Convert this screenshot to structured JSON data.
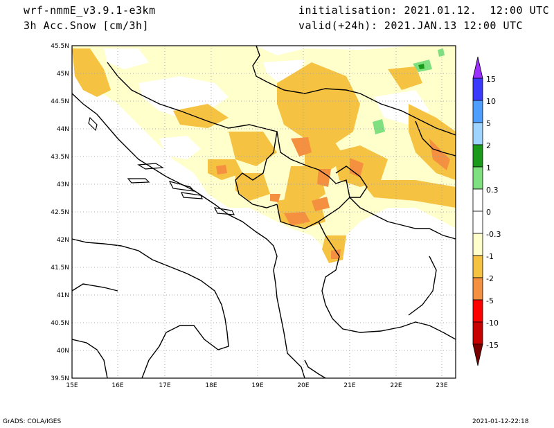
{
  "header": {
    "model": "wrf-nmmE_v3.9.1-e3km",
    "variable": "3h Acc.Snow [cm/3h]",
    "init": "initialisation: 2021.01.12.  12:00 UTC",
    "valid": "valid(+24h): 2021.JAN.13 12:00 UTC"
  },
  "axes": {
    "lat_labels": [
      "45.5N",
      "45N",
      "44.5N",
      "44N",
      "43.5N",
      "43N",
      "42.5N",
      "42N",
      "41.5N",
      "41N",
      "40.5N",
      "40N",
      "39.5N"
    ],
    "lon_labels": [
      "15E",
      "16E",
      "17E",
      "18E",
      "19E",
      "20E",
      "21E",
      "22E",
      "23E"
    ]
  },
  "colorbar": {
    "labels": [
      "15",
      "10",
      "5",
      "2",
      "1",
      "0.3",
      "0",
      "-0.3",
      "-1",
      "-2",
      "-5",
      "-10",
      "-15"
    ],
    "colors": [
      "#9b30ff",
      "#3a3aff",
      "#4d9eff",
      "#9fd4ff",
      "#1a9a1a",
      "#7ee07e",
      "#ffffff",
      "#ffffcc",
      "#f5c242",
      "#f59040",
      "#ff0000",
      "#c80000",
      "#7a0000"
    ]
  },
  "footer": {
    "left": "GrADS: COLA/IGES",
    "right": "2021-01-12-22:18"
  }
}
